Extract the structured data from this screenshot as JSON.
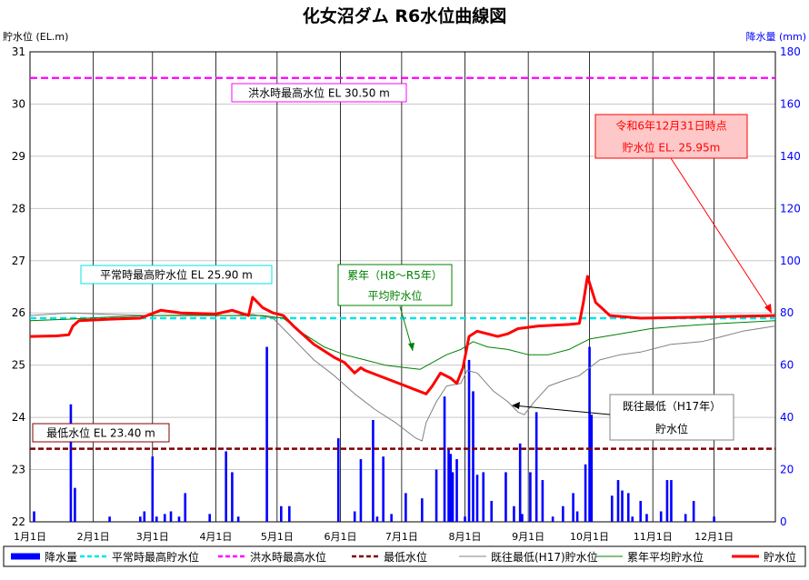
{
  "chart_data": {
    "type": "line",
    "title": "化女沼ダム R6水位曲線図",
    "ylabel_left": "貯水位 (EL.m)",
    "ylabel_right": "降水量 (mm)",
    "ylim_left": [
      22,
      31
    ],
    "ylim_right": [
      0,
      180
    ],
    "yticks_left": [
      "22",
      "23",
      "24",
      "25",
      "26",
      "27",
      "28",
      "29",
      "30",
      "31"
    ],
    "yticks_right": [
      "0",
      "20",
      "40",
      "60",
      "80",
      "100",
      "120",
      "140",
      "160",
      "180"
    ],
    "x_domain": [
      1,
      366
    ],
    "months": [
      {
        "label": "1月1日",
        "day": 1
      },
      {
        "label": "2月1日",
        "day": 32
      },
      {
        "label": "3月1日",
        "day": 61
      },
      {
        "label": "4月1日",
        "day": 92
      },
      {
        "label": "5月1日",
        "day": 122
      },
      {
        "label": "6月1日",
        "day": 153
      },
      {
        "label": "7月1日",
        "day": 183
      },
      {
        "label": "8月1日",
        "day": 214
      },
      {
        "label": "9月1日",
        "day": 245
      },
      {
        "label": "10月1日",
        "day": 275
      },
      {
        "label": "11月1日",
        "day": 306
      },
      {
        "label": "12月1日",
        "day": 336
      }
    ],
    "x_end_day": 366,
    "grid": true,
    "legend_position": "bottom",
    "hlines": [
      {
        "name": "洪水時最高水位",
        "value": 30.5,
        "color": "#ff00ff",
        "style": "dash"
      },
      {
        "name": "平常時最高貯水位",
        "value": 25.9,
        "color": "#00e5e5",
        "style": "dash"
      },
      {
        "name": "最低水位",
        "value": 23.4,
        "color": "#800000",
        "style": "dash"
      }
    ],
    "annotations": [
      {
        "id": "flood",
        "text": "洪水時最高水位 EL 30.50 m",
        "border": "#ff00ff",
        "fill": "#ffffff",
        "color": "#000000"
      },
      {
        "id": "normal",
        "text": "平常時最高貯水位 EL 25.90 m",
        "border": "#00e5e5",
        "fill": "#ffffff",
        "color": "#000000"
      },
      {
        "id": "min",
        "text": "最低水位 EL 23.40 m",
        "border": "#800000",
        "fill": "#ffffff",
        "color": "#000000"
      },
      {
        "id": "avg_l1",
        "text": "累年（H8〜R5年）",
        "border": "#008000",
        "fill": "#ffffff",
        "color": "#008000"
      },
      {
        "id": "avg_l2",
        "text": "平均貯水位",
        "border": "",
        "fill": "",
        "color": "#008000"
      },
      {
        "id": "low_l1",
        "text": "既往最低（H17年）",
        "border": "#808080",
        "fill": "#ffffff",
        "color": "#000000"
      },
      {
        "id": "low_l2",
        "text": "貯水位",
        "border": "",
        "fill": "",
        "color": "#000000"
      },
      {
        "id": "now_l1",
        "text": "令和6年12月31日時点",
        "border": "#ff0000",
        "fill": "#ffc8c8",
        "color": "#ff0000"
      },
      {
        "id": "now_l2",
        "text": "貯水位 EL. 25.95m",
        "border": "",
        "fill": "",
        "color": "#ff0000"
      }
    ],
    "series": [
      {
        "name": "貯水位",
        "color": "#ff0000",
        "width": 3,
        "points": [
          [
            1,
            25.55
          ],
          [
            14,
            25.56
          ],
          [
            20,
            25.58
          ],
          [
            22,
            25.75
          ],
          [
            25,
            25.85
          ],
          [
            40,
            25.88
          ],
          [
            55,
            25.9
          ],
          [
            65,
            26.05
          ],
          [
            75,
            26.0
          ],
          [
            92,
            25.98
          ],
          [
            100,
            26.05
          ],
          [
            108,
            25.95
          ],
          [
            110,
            26.3
          ],
          [
            115,
            26.1
          ],
          [
            120,
            26.0
          ],
          [
            125,
            25.95
          ],
          [
            130,
            25.75
          ],
          [
            140,
            25.4
          ],
          [
            150,
            25.15
          ],
          [
            155,
            25.05
          ],
          [
            160,
            24.85
          ],
          [
            163,
            24.95
          ],
          [
            165,
            24.9
          ],
          [
            175,
            24.75
          ],
          [
            185,
            24.6
          ],
          [
            195,
            24.45
          ],
          [
            198,
            24.6
          ],
          [
            202,
            24.85
          ],
          [
            207,
            24.75
          ],
          [
            210,
            24.65
          ],
          [
            213,
            24.95
          ],
          [
            216,
            25.55
          ],
          [
            220,
            25.65
          ],
          [
            230,
            25.55
          ],
          [
            235,
            25.6
          ],
          [
            240,
            25.7
          ],
          [
            250,
            25.75
          ],
          [
            265,
            25.78
          ],
          [
            270,
            25.8
          ],
          [
            272,
            26.2
          ],
          [
            274,
            26.7
          ],
          [
            278,
            26.2
          ],
          [
            285,
            25.95
          ],
          [
            300,
            25.9
          ],
          [
            330,
            25.92
          ],
          [
            366,
            25.95
          ]
        ]
      },
      {
        "name": "既往最低(H17)貯水位",
        "color": "#808080",
        "width": 1,
        "points": [
          [
            1,
            25.95
          ],
          [
            20,
            26.0
          ],
          [
            40,
            25.97
          ],
          [
            60,
            25.95
          ],
          [
            80,
            25.96
          ],
          [
            100,
            25.95
          ],
          [
            110,
            25.97
          ],
          [
            120,
            25.9
          ],
          [
            130,
            25.5
          ],
          [
            140,
            25.1
          ],
          [
            150,
            24.8
          ],
          [
            160,
            24.45
          ],
          [
            170,
            24.15
          ],
          [
            180,
            23.9
          ],
          [
            190,
            23.6
          ],
          [
            193,
            23.55
          ],
          [
            195,
            23.9
          ],
          [
            200,
            24.3
          ],
          [
            205,
            24.6
          ],
          [
            212,
            24.65
          ],
          [
            215,
            24.9
          ],
          [
            220,
            24.85
          ],
          [
            228,
            24.5
          ],
          [
            235,
            24.3
          ],
          [
            240,
            24.1
          ],
          [
            243,
            24.05
          ],
          [
            248,
            24.3
          ],
          [
            255,
            24.6
          ],
          [
            262,
            24.7
          ],
          [
            270,
            24.8
          ],
          [
            280,
            25.1
          ],
          [
            290,
            25.2
          ],
          [
            300,
            25.25
          ],
          [
            315,
            25.4
          ],
          [
            330,
            25.45
          ],
          [
            340,
            25.55
          ],
          [
            350,
            25.65
          ],
          [
            366,
            25.75
          ]
        ]
      },
      {
        "name": "累年平均貯水位",
        "color": "#008000",
        "width": 1,
        "points": [
          [
            1,
            25.85
          ],
          [
            20,
            25.88
          ],
          [
            40,
            25.92
          ],
          [
            60,
            25.95
          ],
          [
            80,
            25.95
          ],
          [
            100,
            25.95
          ],
          [
            115,
            25.95
          ],
          [
            125,
            25.9
          ],
          [
            135,
            25.6
          ],
          [
            145,
            25.35
          ],
          [
            155,
            25.2
          ],
          [
            165,
            25.1
          ],
          [
            175,
            25.0
          ],
          [
            185,
            24.95
          ],
          [
            192,
            24.92
          ],
          [
            198,
            25.05
          ],
          [
            205,
            25.2
          ],
          [
            212,
            25.3
          ],
          [
            218,
            25.45
          ],
          [
            225,
            25.35
          ],
          [
            235,
            25.3
          ],
          [
            245,
            25.2
          ],
          [
            255,
            25.2
          ],
          [
            265,
            25.3
          ],
          [
            275,
            25.5
          ],
          [
            290,
            25.6
          ],
          [
            305,
            25.7
          ],
          [
            320,
            25.75
          ],
          [
            340,
            25.8
          ],
          [
            366,
            25.85
          ]
        ]
      }
    ],
    "rainfall": [
      [
        3,
        4
      ],
      [
        21,
        45
      ],
      [
        23,
        13
      ],
      [
        40,
        2
      ],
      [
        55,
        2
      ],
      [
        57,
        4
      ],
      [
        61,
        25
      ],
      [
        63,
        2
      ],
      [
        67,
        3
      ],
      [
        70,
        4
      ],
      [
        74,
        2
      ],
      [
        77,
        11
      ],
      [
        89,
        3
      ],
      [
        97,
        27
      ],
      [
        100,
        19
      ],
      [
        103,
        2
      ],
      [
        117,
        67
      ],
      [
        124,
        6
      ],
      [
        128,
        6
      ],
      [
        152,
        32
      ],
      [
        160,
        4
      ],
      [
        163,
        24
      ],
      [
        169,
        39
      ],
      [
        171,
        2
      ],
      [
        174,
        25
      ],
      [
        178,
        3
      ],
      [
        185,
        11
      ],
      [
        193,
        9
      ],
      [
        200,
        20
      ],
      [
        204,
        48
      ],
      [
        206,
        28
      ],
      [
        207,
        26
      ],
      [
        208,
        19
      ],
      [
        210,
        24
      ],
      [
        214,
        2
      ],
      [
        216,
        62
      ],
      [
        218,
        50
      ],
      [
        220,
        18
      ],
      [
        223,
        19
      ],
      [
        227,
        8
      ],
      [
        234,
        19
      ],
      [
        238,
        6
      ],
      [
        241,
        30
      ],
      [
        242,
        3
      ],
      [
        246,
        19
      ],
      [
        249,
        42
      ],
      [
        252,
        16
      ],
      [
        257,
        2
      ],
      [
        262,
        6
      ],
      [
        267,
        11
      ],
      [
        269,
        4
      ],
      [
        273,
        22
      ],
      [
        275,
        67
      ],
      [
        276,
        41
      ],
      [
        286,
        10
      ],
      [
        289,
        16
      ],
      [
        291,
        12
      ],
      [
        294,
        11
      ],
      [
        296,
        2
      ],
      [
        300,
        8
      ],
      [
        303,
        3
      ],
      [
        310,
        4
      ],
      [
        313,
        16
      ],
      [
        315,
        16
      ],
      [
        322,
        3
      ],
      [
        326,
        8
      ],
      [
        336,
        2
      ]
    ],
    "legend": [
      {
        "name": "降水量",
        "type": "bar",
        "color": "#0000ff"
      },
      {
        "name": "平常時最高貯水位",
        "type": "dash",
        "color": "#00e5e5"
      },
      {
        "name": "洪水時最高水位",
        "type": "dash",
        "color": "#ff00ff"
      },
      {
        "name": "最低水位",
        "type": "dash",
        "color": "#800000"
      },
      {
        "name": "既往最低(H17)貯水位",
        "type": "line",
        "color": "#808080"
      },
      {
        "name": "累年平均貯水位",
        "type": "line",
        "color": "#008000"
      },
      {
        "name": "貯水位",
        "type": "thick",
        "color": "#ff0000"
      }
    ]
  }
}
